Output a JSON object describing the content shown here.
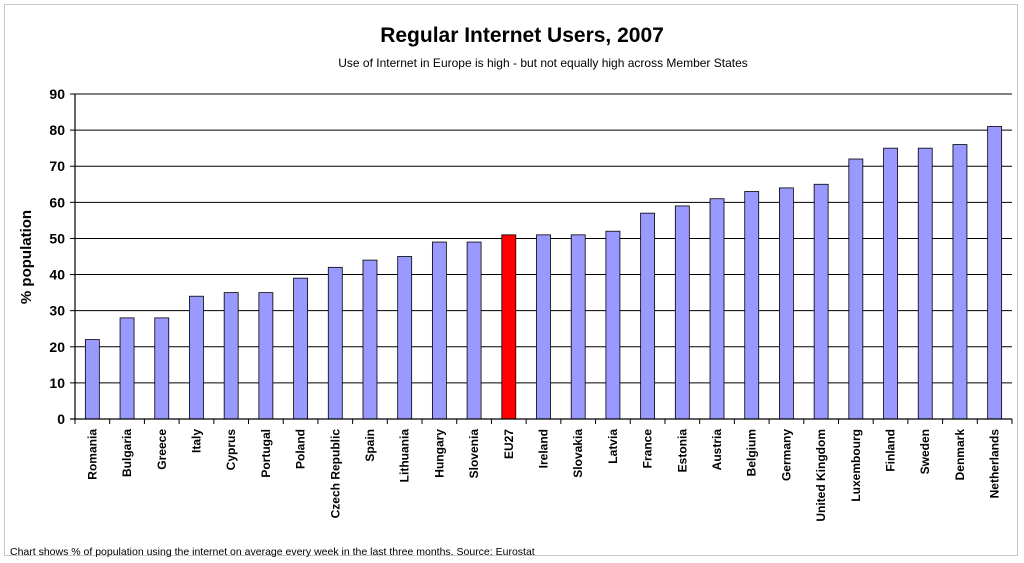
{
  "chart_data": {
    "type": "bar",
    "title": "Regular Internet Users, 2007",
    "subtitle": "Use of Internet in Europe is high - but not equally high across Member States",
    "ylabel": "% population",
    "xlabel": "",
    "ylim": [
      0,
      90
    ],
    "yticks": [
      "0",
      "10",
      "20",
      "30",
      "40",
      "50",
      "60",
      "70",
      "80",
      "90"
    ],
    "grid": true,
    "categories": [
      "Romania",
      "Bulgaria",
      "Greece",
      "Italy",
      "Cyprus",
      "Portugal",
      "Poland",
      "Czech Republic",
      "Spain",
      "Lithuania",
      "Hungary",
      "Slovenia",
      "EU27",
      "Ireland",
      "Slovakia",
      "Latvia",
      "France",
      "Estonia",
      "Austria",
      "Belgium",
      "Germany",
      "United Kingdom",
      "Luxembourg",
      "Finland",
      "Sweden",
      "Denmark",
      "Netherlands"
    ],
    "values": [
      22,
      28,
      28,
      34,
      35,
      35,
      39,
      42,
      44,
      45,
      49,
      49,
      51,
      51,
      51,
      52,
      57,
      59,
      61,
      63,
      64,
      65,
      72,
      75,
      75,
      76,
      81
    ],
    "highlight": "EU27",
    "colors": {
      "bar": "#9999ff",
      "highlight": "#ff0000",
      "bar_stroke": "#000000",
      "grid": "#000000"
    },
    "footnote": "Chart shows % of population using the internet on average every week in the last three months. Source: Eurostat"
  }
}
